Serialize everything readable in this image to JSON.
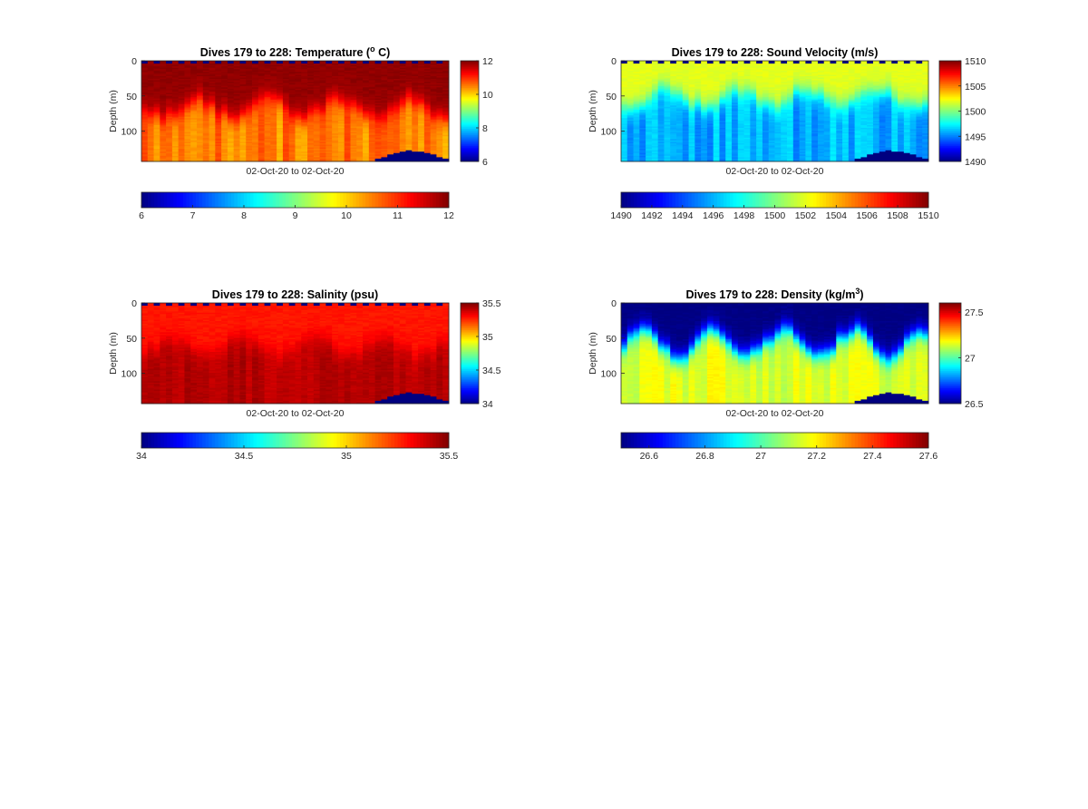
{
  "figure": {
    "background": "#ffffff"
  },
  "chart_data": [
    {
      "type": "heatmap",
      "title": "Dives 179 to 228: Temperature (",
      "title_superscript": "o",
      "title_suffix": " C)",
      "xlabel": "02-Oct-20 to 02-Oct-20",
      "ylabel": "Depth (m)",
      "y_ticks": [
        "0",
        "50",
        "100"
      ],
      "y_tick_values": [
        0,
        50,
        100
      ],
      "ylim": [
        0,
        143
      ],
      "y_reversed": true,
      "dives": [
        179,
        228
      ],
      "clim": [
        6,
        12
      ],
      "colormap": "jet",
      "colorbar_side": {
        "ticks": [
          "6",
          "8",
          "10",
          "12"
        ],
        "values": [
          6,
          8,
          10,
          12
        ]
      },
      "colorbar_bottom": {
        "ticks": [
          "6",
          "7",
          "8",
          "9",
          "10",
          "11",
          "12"
        ],
        "values": [
          6,
          7,
          8,
          9,
          10,
          11,
          12
        ]
      },
      "profile": {
        "surface_value": 11.9,
        "deep_value": 10.5,
        "transition_depth_m": [
          55,
          80
        ],
        "deep_variation": 0.35
      },
      "surface_flag_value": 6,
      "bottom_gap_value": 6
    },
    {
      "type": "heatmap",
      "title": "Dives 179 to 228: Sound Velocity (m/s)",
      "xlabel": "02-Oct-20 to 02-Oct-20",
      "ylabel": "Depth (m)",
      "y_ticks": [
        "0",
        "50",
        "100"
      ],
      "y_tick_values": [
        0,
        50,
        100
      ],
      "ylim": [
        0,
        143
      ],
      "y_reversed": true,
      "dives": [
        179,
        228
      ],
      "clim": [
        1490,
        1510
      ],
      "colormap": "jet",
      "colorbar_side": {
        "ticks": [
          "1490",
          "1495",
          "1500",
          "1505",
          "1510"
        ],
        "values": [
          1490,
          1495,
          1500,
          1505,
          1510
        ]
      },
      "colorbar_bottom": {
        "ticks": [
          "1490",
          "1492",
          "1494",
          "1496",
          "1498",
          "1500",
          "1502",
          "1504",
          "1506",
          "1508",
          "1510"
        ],
        "values": [
          1490,
          1492,
          1494,
          1496,
          1498,
          1500,
          1502,
          1504,
          1506,
          1508,
          1510
        ]
      },
      "profile": {
        "surface_value": 1502.0,
        "deep_value": 1496.0,
        "transition_depth_m": [
          40,
          65
        ],
        "deep_variation": 1.2
      },
      "surface_flag_value": 1490,
      "bottom_gap_value": 1490
    },
    {
      "type": "heatmap",
      "title": "Dives 179 to 228: Salinity (psu)",
      "xlabel": "02-Oct-20 to 02-Oct-20",
      "ylabel": "Depth (m)",
      "y_ticks": [
        "0",
        "50",
        "100"
      ],
      "y_tick_values": [
        0,
        50,
        100
      ],
      "ylim": [
        0,
        143
      ],
      "y_reversed": true,
      "dives": [
        179,
        228
      ],
      "clim": [
        34,
        35.5
      ],
      "colormap": "jet",
      "colorbar_side": {
        "ticks": [
          "34",
          "34.5",
          "35",
          "35.5"
        ],
        "values": [
          34,
          34.5,
          35,
          35.5
        ]
      },
      "colorbar_bottom": {
        "ticks": [
          "34",
          "34.5",
          "35",
          "35.5"
        ],
        "values": [
          34,
          34.5,
          35,
          35.5
        ]
      },
      "profile": {
        "surface_value": 35.28,
        "deep_value": 35.42,
        "transition_depth_m": [
          50,
          75
        ],
        "deep_variation": 0.03
      },
      "surface_flag_value": 34,
      "bottom_gap_value": 34
    },
    {
      "type": "heatmap",
      "title": "Dives 179 to 228: Density (kg/m",
      "title_superscript": "3",
      "title_suffix": ")",
      "xlabel": "02-Oct-20 to 02-Oct-20",
      "ylabel": "Depth (m)",
      "y_ticks": [
        "0",
        "50",
        "100"
      ],
      "y_tick_values": [
        0,
        50,
        100
      ],
      "ylim": [
        0,
        143
      ],
      "y_reversed": true,
      "dives": [
        179,
        228
      ],
      "clim": [
        26.5,
        27.6
      ],
      "colormap": "jet",
      "colorbar_side": {
        "ticks": [
          "26.5",
          "27",
          "27.5"
        ],
        "values": [
          26.5,
          27,
          27.5
        ]
      },
      "colorbar_bottom": {
        "ticks": [
          "26.6",
          "26.8",
          "27",
          "27.2",
          "27.4",
          "27.6"
        ],
        "values": [
          26.6,
          26.8,
          27,
          27.2,
          27.4,
          27.6
        ]
      },
      "profile": {
        "surface_value": 26.5,
        "deep_value": 27.15,
        "transition_depth_m": [
          40,
          75
        ],
        "deep_variation": 0.05
      },
      "surface_flag_value": 26.5,
      "bottom_gap_value": 26.5
    }
  ]
}
